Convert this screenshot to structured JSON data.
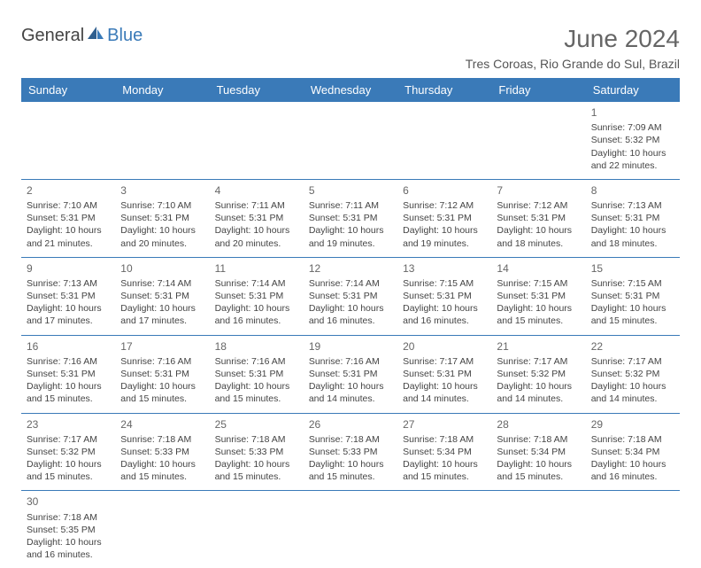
{
  "logo": {
    "part1": "General",
    "part2": "Blue"
  },
  "title": "June 2024",
  "location": "Tres Coroas, Rio Grande do Sul, Brazil",
  "colors": {
    "header_bg": "#3a7ab8",
    "header_fg": "#ffffff",
    "border": "#3a7ab8",
    "text": "#444444",
    "title": "#666666"
  },
  "typography": {
    "title_fontsize": 28,
    "location_fontsize": 14,
    "header_fontsize": 13,
    "cell_fontsize": 10.5,
    "daynum_fontsize": 12
  },
  "weekdays": [
    "Sunday",
    "Monday",
    "Tuesday",
    "Wednesday",
    "Thursday",
    "Friday",
    "Saturday"
  ],
  "first_weekday_index": 6,
  "days": [
    {
      "n": 1,
      "sunrise": "7:09 AM",
      "sunset": "5:32 PM",
      "daylight": "10 hours and 22 minutes."
    },
    {
      "n": 2,
      "sunrise": "7:10 AM",
      "sunset": "5:31 PM",
      "daylight": "10 hours and 21 minutes."
    },
    {
      "n": 3,
      "sunrise": "7:10 AM",
      "sunset": "5:31 PM",
      "daylight": "10 hours and 20 minutes."
    },
    {
      "n": 4,
      "sunrise": "7:11 AM",
      "sunset": "5:31 PM",
      "daylight": "10 hours and 20 minutes."
    },
    {
      "n": 5,
      "sunrise": "7:11 AM",
      "sunset": "5:31 PM",
      "daylight": "10 hours and 19 minutes."
    },
    {
      "n": 6,
      "sunrise": "7:12 AM",
      "sunset": "5:31 PM",
      "daylight": "10 hours and 19 minutes."
    },
    {
      "n": 7,
      "sunrise": "7:12 AM",
      "sunset": "5:31 PM",
      "daylight": "10 hours and 18 minutes."
    },
    {
      "n": 8,
      "sunrise": "7:13 AM",
      "sunset": "5:31 PM",
      "daylight": "10 hours and 18 minutes."
    },
    {
      "n": 9,
      "sunrise": "7:13 AM",
      "sunset": "5:31 PM",
      "daylight": "10 hours and 17 minutes."
    },
    {
      "n": 10,
      "sunrise": "7:14 AM",
      "sunset": "5:31 PM",
      "daylight": "10 hours and 17 minutes."
    },
    {
      "n": 11,
      "sunrise": "7:14 AM",
      "sunset": "5:31 PM",
      "daylight": "10 hours and 16 minutes."
    },
    {
      "n": 12,
      "sunrise": "7:14 AM",
      "sunset": "5:31 PM",
      "daylight": "10 hours and 16 minutes."
    },
    {
      "n": 13,
      "sunrise": "7:15 AM",
      "sunset": "5:31 PM",
      "daylight": "10 hours and 16 minutes."
    },
    {
      "n": 14,
      "sunrise": "7:15 AM",
      "sunset": "5:31 PM",
      "daylight": "10 hours and 15 minutes."
    },
    {
      "n": 15,
      "sunrise": "7:15 AM",
      "sunset": "5:31 PM",
      "daylight": "10 hours and 15 minutes."
    },
    {
      "n": 16,
      "sunrise": "7:16 AM",
      "sunset": "5:31 PM",
      "daylight": "10 hours and 15 minutes."
    },
    {
      "n": 17,
      "sunrise": "7:16 AM",
      "sunset": "5:31 PM",
      "daylight": "10 hours and 15 minutes."
    },
    {
      "n": 18,
      "sunrise": "7:16 AM",
      "sunset": "5:31 PM",
      "daylight": "10 hours and 15 minutes."
    },
    {
      "n": 19,
      "sunrise": "7:16 AM",
      "sunset": "5:31 PM",
      "daylight": "10 hours and 14 minutes."
    },
    {
      "n": 20,
      "sunrise": "7:17 AM",
      "sunset": "5:31 PM",
      "daylight": "10 hours and 14 minutes."
    },
    {
      "n": 21,
      "sunrise": "7:17 AM",
      "sunset": "5:32 PM",
      "daylight": "10 hours and 14 minutes."
    },
    {
      "n": 22,
      "sunrise": "7:17 AM",
      "sunset": "5:32 PM",
      "daylight": "10 hours and 14 minutes."
    },
    {
      "n": 23,
      "sunrise": "7:17 AM",
      "sunset": "5:32 PM",
      "daylight": "10 hours and 15 minutes."
    },
    {
      "n": 24,
      "sunrise": "7:18 AM",
      "sunset": "5:33 PM",
      "daylight": "10 hours and 15 minutes."
    },
    {
      "n": 25,
      "sunrise": "7:18 AM",
      "sunset": "5:33 PM",
      "daylight": "10 hours and 15 minutes."
    },
    {
      "n": 26,
      "sunrise": "7:18 AM",
      "sunset": "5:33 PM",
      "daylight": "10 hours and 15 minutes."
    },
    {
      "n": 27,
      "sunrise": "7:18 AM",
      "sunset": "5:34 PM",
      "daylight": "10 hours and 15 minutes."
    },
    {
      "n": 28,
      "sunrise": "7:18 AM",
      "sunset": "5:34 PM",
      "daylight": "10 hours and 15 minutes."
    },
    {
      "n": 29,
      "sunrise": "7:18 AM",
      "sunset": "5:34 PM",
      "daylight": "10 hours and 16 minutes."
    },
    {
      "n": 30,
      "sunrise": "7:18 AM",
      "sunset": "5:35 PM",
      "daylight": "10 hours and 16 minutes."
    }
  ],
  "labels": {
    "sunrise": "Sunrise:",
    "sunset": "Sunset:",
    "daylight": "Daylight:"
  }
}
